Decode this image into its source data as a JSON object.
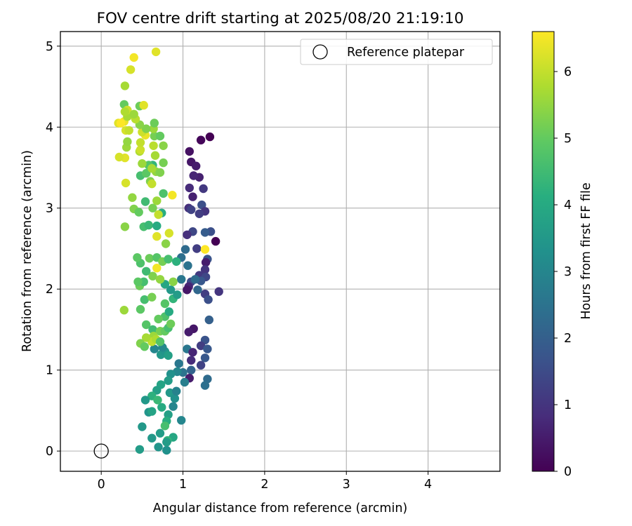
{
  "chart_data": {
    "type": "scatter",
    "title": "FOV centre drift starting at 2025/08/20 21:19:10",
    "xlabel": "Angular distance from reference (arcmin)",
    "ylabel": "Rotation from reference (arcmin)",
    "xlim": [
      -0.5,
      4.88
    ],
    "ylim": [
      -0.25,
      5.18
    ],
    "xticks": [
      0,
      1,
      2,
      3,
      4
    ],
    "yticks": [
      0,
      1,
      2,
      3,
      4,
      5
    ],
    "grid": true,
    "colormap": "viridis",
    "colorbar": {
      "label": "Hours from first FF file",
      "min": 0,
      "max": 6.6,
      "ticks": [
        0,
        1,
        2,
        3,
        4,
        5,
        6
      ]
    },
    "legend": {
      "position": "top-right",
      "entries": [
        "Reference platepar"
      ]
    },
    "reference": {
      "name": "Reference platepar",
      "x": 0,
      "y": 0,
      "marker": "hollow-circle"
    },
    "series": [
      {
        "points": [
          [
            1.33,
            3.88,
            0.0
          ],
          [
            1.22,
            3.84,
            0.1
          ],
          [
            1.08,
            3.7,
            0.3
          ],
          [
            1.1,
            3.57,
            0.4
          ],
          [
            1.16,
            3.52,
            0.5
          ],
          [
            1.2,
            3.38,
            0.6
          ],
          [
            1.13,
            3.4,
            0.7
          ],
          [
            1.25,
            3.24,
            1.1
          ],
          [
            1.08,
            3.25,
            0.8
          ],
          [
            1.12,
            3.14,
            0.6
          ],
          [
            1.23,
            3.04,
            1.6
          ],
          [
            1.07,
            3.0,
            0.9
          ],
          [
            1.27,
            2.96,
            1.0
          ],
          [
            1.2,
            2.93,
            1.2
          ],
          [
            1.1,
            2.98,
            1.3
          ],
          [
            1.4,
            2.59,
            0.0
          ],
          [
            1.34,
            2.71,
            1.6
          ],
          [
            1.27,
            2.7,
            1.9
          ],
          [
            1.12,
            2.71,
            1.4
          ],
          [
            1.05,
            2.67,
            0.9
          ],
          [
            1.3,
            2.37,
            1.7
          ],
          [
            1.28,
            2.33,
            0.5
          ],
          [
            1.03,
            2.49,
            2.3
          ],
          [
            0.98,
            2.39,
            2.4
          ],
          [
            1.06,
            2.29,
            2.5
          ],
          [
            1.17,
            2.5,
            1.2
          ],
          [
            1.27,
            2.24,
            1.0
          ],
          [
            1.2,
            2.17,
            1.1
          ],
          [
            1.28,
            2.15,
            1.4
          ],
          [
            1.22,
            2.1,
            1.8
          ],
          [
            1.1,
            2.09,
            1.5
          ],
          [
            1.15,
            2.12,
            2.3
          ],
          [
            1.07,
            2.03,
            0.7
          ],
          [
            1.05,
            1.99,
            0.4
          ],
          [
            1.27,
            1.94,
            1.2
          ],
          [
            1.44,
            1.97,
            1.0
          ],
          [
            1.31,
            1.87,
            1.6
          ],
          [
            1.18,
            1.99,
            2.2
          ],
          [
            0.98,
            2.12,
            2.6
          ],
          [
            1.32,
            1.62,
            2.0
          ],
          [
            1.13,
            1.51,
            0.4
          ],
          [
            1.07,
            1.47,
            0.5
          ],
          [
            1.27,
            1.37,
            1.7
          ],
          [
            1.22,
            1.3,
            1.2
          ],
          [
            1.3,
            1.26,
            1.8
          ],
          [
            1.05,
            1.26,
            2.6
          ],
          [
            1.12,
            1.22,
            0.7
          ],
          [
            1.27,
            1.15,
            1.8
          ],
          [
            1.22,
            1.06,
            1.3
          ],
          [
            1.1,
            1.12,
            0.8
          ],
          [
            1.1,
            1.0,
            2.1
          ],
          [
            0.95,
            1.08,
            2.6
          ],
          [
            1.0,
            0.97,
            2.5
          ],
          [
            0.93,
            0.98,
            3.0
          ],
          [
            1.08,
            0.9,
            0.5
          ],
          [
            1.3,
            0.89,
            2.3
          ],
          [
            1.27,
            0.81,
            2.4
          ],
          [
            1.02,
            0.85,
            2.8
          ],
          [
            0.98,
            0.38,
            3.0
          ],
          [
            0.85,
            0.95,
            3.3
          ],
          [
            0.82,
            0.87,
            3.6
          ],
          [
            0.73,
            0.82,
            3.8
          ],
          [
            0.84,
            0.72,
            3.5
          ],
          [
            0.9,
            0.65,
            3.3
          ],
          [
            0.92,
            0.74,
            2.9
          ],
          [
            0.68,
            0.75,
            3.7
          ],
          [
            0.88,
            0.55,
            3.0
          ],
          [
            0.62,
            0.68,
            4.2
          ],
          [
            0.74,
            0.54,
            4.0
          ],
          [
            0.54,
            0.63,
            3.5
          ],
          [
            0.58,
            0.48,
            3.4
          ],
          [
            0.62,
            0.49,
            3.8
          ],
          [
            0.82,
            0.45,
            3.7
          ],
          [
            0.8,
            0.37,
            4.1
          ],
          [
            0.78,
            0.31,
            4.6
          ],
          [
            0.5,
            0.3,
            3.5
          ],
          [
            0.72,
            0.22,
            3.6
          ],
          [
            0.88,
            0.17,
            3.9
          ],
          [
            0.62,
            0.16,
            3.5
          ],
          [
            0.81,
            0.13,
            4.3
          ],
          [
            0.7,
            0.05,
            3.4
          ],
          [
            0.8,
            0.01,
            3.3
          ],
          [
            0.47,
            0.02,
            3.6
          ],
          [
            0.8,
            0.11,
            3.6
          ],
          [
            0.69,
            0.63,
            4.4
          ],
          [
            0.73,
            1.19,
            3.5
          ],
          [
            0.78,
            1.23,
            3.4
          ],
          [
            0.82,
            1.18,
            3.7
          ],
          [
            0.75,
            1.28,
            3.1
          ],
          [
            0.65,
            1.26,
            3.0
          ],
          [
            0.55,
            1.56,
            4.8
          ],
          [
            0.63,
            1.5,
            4.5
          ],
          [
            0.72,
            1.48,
            5.2
          ],
          [
            0.78,
            1.48,
            5.0
          ],
          [
            0.82,
            1.52,
            4.6
          ],
          [
            0.85,
            1.57,
            5.1
          ],
          [
            0.78,
            1.66,
            4.7
          ],
          [
            0.7,
            1.63,
            5.0
          ],
          [
            0.64,
            1.42,
            5.6
          ],
          [
            0.62,
            1.35,
            6.0
          ],
          [
            0.67,
            1.38,
            5.8
          ],
          [
            0.55,
            1.4,
            5.7
          ],
          [
            0.48,
            1.33,
            5.3
          ],
          [
            0.53,
            1.29,
            5.0
          ],
          [
            0.72,
            1.35,
            4.8
          ],
          [
            0.48,
            1.75,
            4.9
          ],
          [
            0.53,
            1.87,
            4.6
          ],
          [
            0.62,
            1.9,
            5.2
          ],
          [
            0.78,
            1.82,
            4.8
          ],
          [
            0.88,
            1.88,
            4.3
          ],
          [
            0.83,
            1.72,
            4.0
          ],
          [
            0.93,
            1.93,
            3.6
          ],
          [
            0.85,
            1.99,
            3.5
          ],
          [
            0.78,
            2.06,
            3.9
          ],
          [
            0.28,
            1.74,
            5.6
          ],
          [
            0.47,
            2.04,
            5.1
          ],
          [
            0.52,
            2.09,
            4.6
          ],
          [
            0.45,
            2.09,
            4.9
          ],
          [
            0.63,
            2.16,
            5.3
          ],
          [
            0.72,
            2.12,
            5.5
          ],
          [
            0.88,
            2.09,
            5.4
          ],
          [
            0.48,
            2.32,
            4.7
          ],
          [
            0.44,
            2.39,
            4.9
          ],
          [
            0.55,
            2.22,
            4.5
          ],
          [
            0.59,
            2.38,
            5.1
          ],
          [
            0.68,
            2.39,
            4.8
          ],
          [
            0.75,
            2.34,
            5.2
          ],
          [
            0.82,
            2.37,
            4.6
          ],
          [
            0.92,
            2.34,
            4.2
          ],
          [
            0.68,
            2.26,
            6.5
          ],
          [
            0.68,
            2.65,
            6.3
          ],
          [
            0.83,
            2.69,
            6.2
          ],
          [
            0.79,
            2.56,
            5.4
          ],
          [
            0.52,
            2.77,
            4.6
          ],
          [
            0.58,
            2.79,
            4.4
          ],
          [
            0.68,
            2.78,
            4.0
          ],
          [
            0.29,
            2.77,
            5.4
          ],
          [
            0.74,
            2.94,
            4.1
          ],
          [
            0.7,
            2.92,
            6.0
          ],
          [
            0.63,
            3.0,
            5.2
          ],
          [
            0.68,
            3.09,
            5.6
          ],
          [
            0.54,
            3.08,
            4.5
          ],
          [
            0.4,
            2.99,
            5.3
          ],
          [
            0.46,
            2.95,
            5.0
          ],
          [
            0.38,
            3.13,
            5.5
          ],
          [
            0.76,
            3.18,
            4.7
          ],
          [
            0.87,
            3.16,
            6.5
          ],
          [
            0.6,
            3.33,
            5.3
          ],
          [
            0.62,
            3.3,
            6.0
          ],
          [
            0.48,
            3.4,
            4.6
          ],
          [
            0.55,
            3.43,
            4.9
          ],
          [
            0.67,
            3.45,
            5.5
          ],
          [
            0.63,
            3.53,
            4.3
          ],
          [
            0.72,
            3.44,
            5.3
          ],
          [
            0.3,
            3.31,
            6.2
          ],
          [
            0.58,
            3.53,
            4.8
          ],
          [
            0.62,
            3.49,
            5.7
          ],
          [
            0.76,
            3.56,
            5.2
          ],
          [
            0.5,
            3.55,
            5.6
          ],
          [
            0.29,
            3.62,
            6.3
          ],
          [
            0.22,
            3.63,
            6.2
          ],
          [
            0.31,
            3.75,
            5.6
          ],
          [
            0.47,
            3.7,
            5.8
          ],
          [
            0.48,
            3.72,
            6.1
          ],
          [
            0.66,
            3.65,
            5.7
          ],
          [
            0.64,
            3.77,
            5.9
          ],
          [
            0.76,
            3.77,
            5.4
          ],
          [
            0.48,
            3.81,
            6.0
          ],
          [
            0.54,
            3.9,
            6.4
          ],
          [
            0.32,
            3.82,
            5.5
          ],
          [
            0.65,
            3.89,
            5.2
          ],
          [
            0.72,
            3.89,
            5.0
          ],
          [
            0.64,
            3.98,
            5.6
          ],
          [
            0.5,
            3.94,
            6.1
          ],
          [
            0.55,
            3.98,
            5.3
          ],
          [
            0.3,
            3.96,
            6.2
          ],
          [
            0.34,
            3.96,
            6.0
          ],
          [
            0.47,
            4.03,
            5.4
          ],
          [
            0.21,
            4.05,
            6.3
          ],
          [
            0.28,
            4.07,
            6.4
          ],
          [
            0.24,
            4.05,
            6.6
          ],
          [
            0.42,
            4.1,
            5.9
          ],
          [
            0.32,
            4.13,
            5.7
          ],
          [
            0.65,
            4.05,
            5.1
          ],
          [
            0.28,
            4.28,
            5.0
          ],
          [
            0.32,
            4.21,
            6.1
          ],
          [
            0.29,
            4.19,
            5.8
          ],
          [
            0.4,
            4.16,
            5.6
          ],
          [
            0.47,
            4.26,
            5.1
          ],
          [
            0.52,
            4.27,
            6.3
          ],
          [
            0.29,
            4.51,
            5.7
          ],
          [
            0.36,
            4.71,
            6.2
          ],
          [
            0.4,
            4.86,
            6.5
          ],
          [
            0.67,
            4.93,
            6.3
          ],
          [
            1.27,
            2.49,
            6.6
          ]
        ]
      }
    ]
  }
}
